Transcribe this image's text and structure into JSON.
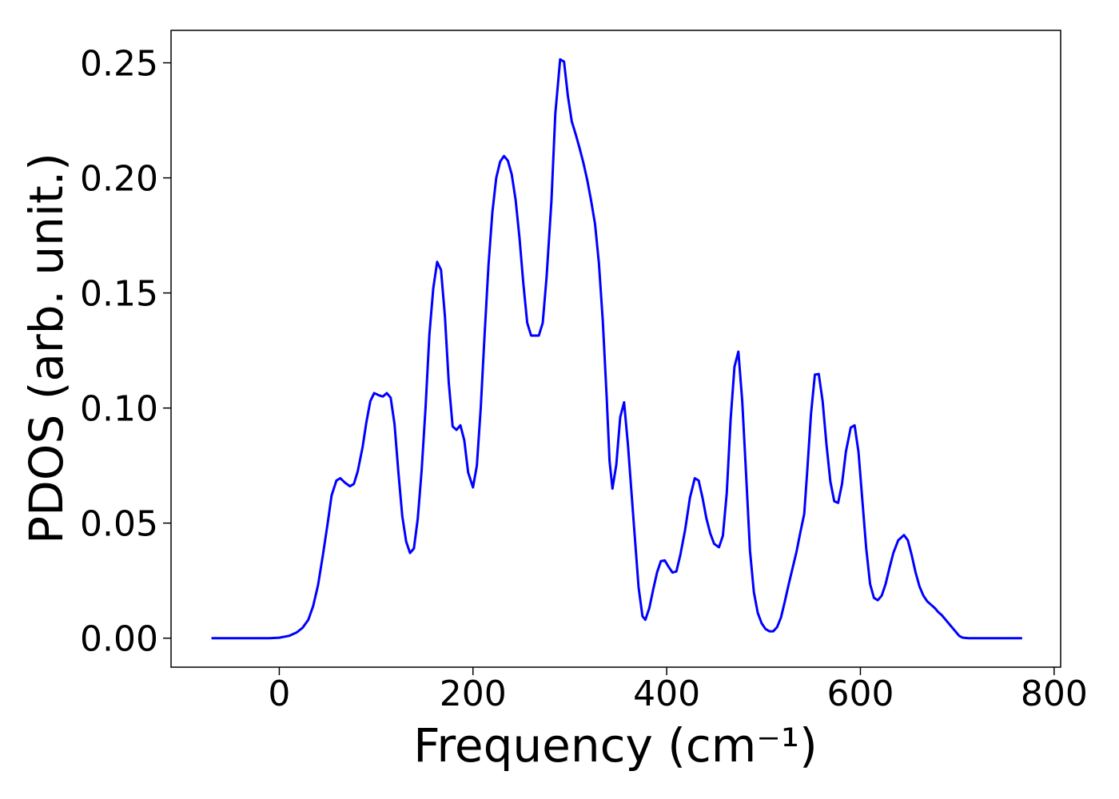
{
  "chart_data": {
    "type": "line",
    "xlabel": "Frequency (cm⁻¹)",
    "ylabel": "PDOS (arb. unit.)",
    "color": "#0000ff",
    "x": [
      -70,
      -50,
      -30,
      -10,
      0,
      10,
      18,
      24,
      30,
      35,
      40,
      45,
      50,
      54,
      59,
      63,
      68,
      73,
      77,
      81,
      86,
      90,
      94,
      98,
      103,
      107,
      111,
      115,
      119,
      123,
      127,
      131,
      135,
      139,
      143,
      147,
      151,
      155,
      159,
      163,
      167,
      171,
      175,
      179,
      183,
      187,
      191,
      195,
      200,
      204,
      208,
      212,
      216,
      220,
      224,
      228,
      232,
      236,
      240,
      244,
      248,
      252,
      256,
      260,
      268,
      272,
      276,
      281,
      285,
      290,
      294,
      298,
      302,
      306,
      310,
      314,
      318,
      322,
      326,
      330,
      334,
      338,
      341,
      344,
      348,
      352,
      356,
      360,
      366,
      371,
      375,
      378,
      382,
      386,
      390,
      394,
      398,
      402,
      406,
      410,
      414,
      419,
      424,
      429,
      433,
      437,
      441,
      445,
      449,
      454,
      458,
      462,
      466,
      470,
      474,
      478,
      482,
      486,
      490,
      494,
      498,
      502,
      506,
      510,
      514,
      518,
      522,
      526,
      530,
      534,
      538,
      542,
      545,
      549,
      553,
      557,
      561,
      565,
      569,
      573,
      577,
      581,
      585,
      590,
      594,
      598,
      602,
      606,
      610,
      614,
      618,
      622,
      626,
      630,
      634,
      639,
      645,
      649,
      653,
      657,
      661,
      665,
      669,
      673,
      677,
      680,
      684,
      687,
      690,
      693,
      696,
      699,
      702,
      705,
      708,
      712,
      730,
      750,
      767
    ],
    "values": [
      0,
      0,
      0,
      0,
      0.0002,
      0.001,
      0.0025,
      0.0045,
      0.008,
      0.014,
      0.023,
      0.036,
      0.05,
      0.062,
      0.0685,
      0.0695,
      0.0675,
      0.066,
      0.067,
      0.0725,
      0.083,
      0.094,
      0.103,
      0.1065,
      0.1055,
      0.105,
      0.1065,
      0.1045,
      0.093,
      0.072,
      0.053,
      0.042,
      0.037,
      0.039,
      0.052,
      0.073,
      0.1,
      0.132,
      0.152,
      0.1635,
      0.16,
      0.14,
      0.111,
      0.092,
      0.0905,
      0.0925,
      0.086,
      0.072,
      0.0655,
      0.075,
      0.1,
      0.132,
      0.162,
      0.185,
      0.2,
      0.207,
      0.2095,
      0.2075,
      0.2015,
      0.1905,
      0.174,
      0.154,
      0.137,
      0.1315,
      0.1315,
      0.137,
      0.157,
      0.19,
      0.228,
      0.2515,
      0.2505,
      0.2355,
      0.2245,
      0.219,
      0.213,
      0.2065,
      0.199,
      0.19,
      0.18,
      0.163,
      0.138,
      0.105,
      0.077,
      0.065,
      0.0755,
      0.096,
      0.1025,
      0.084,
      0.05,
      0.022,
      0.0095,
      0.008,
      0.013,
      0.021,
      0.0285,
      0.0335,
      0.0338,
      0.031,
      0.0285,
      0.029,
      0.036,
      0.047,
      0.061,
      0.0695,
      0.0685,
      0.061,
      0.052,
      0.0455,
      0.041,
      0.0395,
      0.0445,
      0.063,
      0.095,
      0.118,
      0.1245,
      0.103,
      0.071,
      0.038,
      0.02,
      0.011,
      0.0065,
      0.004,
      0.003,
      0.003,
      0.0048,
      0.009,
      0.016,
      0.0235,
      0.0305,
      0.0375,
      0.046,
      0.054,
      0.072,
      0.0975,
      0.1145,
      0.1148,
      0.103,
      0.084,
      0.068,
      0.0595,
      0.0588,
      0.067,
      0.081,
      0.0915,
      0.0925,
      0.081,
      0.06,
      0.039,
      0.0235,
      0.0175,
      0.0165,
      0.0185,
      0.0235,
      0.0305,
      0.037,
      0.0425,
      0.0448,
      0.0425,
      0.036,
      0.0285,
      0.0225,
      0.0185,
      0.016,
      0.0145,
      0.013,
      0.0115,
      0.01,
      0.0085,
      0.007,
      0.0055,
      0.004,
      0.0025,
      0.001,
      0.0003,
      0.0001,
      0,
      0,
      0,
      0
    ],
    "xlim": [
      -111.75,
      806.75
    ],
    "ylim": [
      -0.0126,
      0.2641
    ],
    "xticks": [
      0,
      200,
      400,
      600,
      800
    ],
    "yticks": [
      {
        "value": 0,
        "label": "0.00"
      },
      0.05,
      {
        "value": 0.1,
        "label": "0.10"
      },
      0.15,
      {
        "value": 0.2,
        "label": "0.20"
      },
      0.25
    ]
  }
}
